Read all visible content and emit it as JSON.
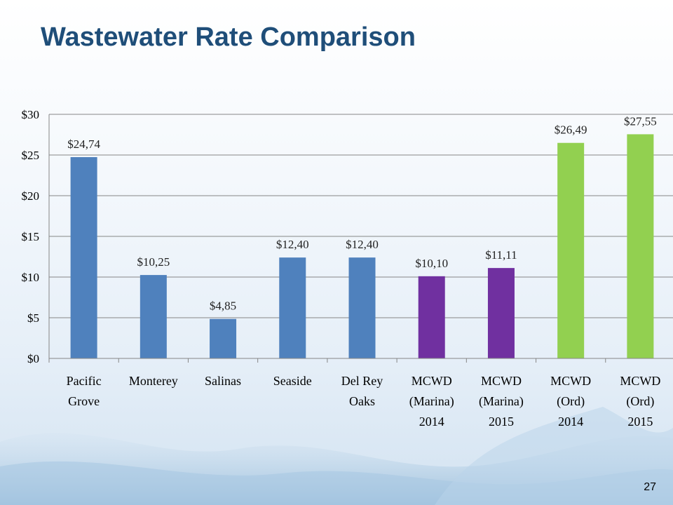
{
  "slide": {
    "title": "Wastewater Rate Comparison",
    "page_number": "27"
  },
  "colors": {
    "title": "#1f4e79",
    "blue": "#4f81bd",
    "purple": "#7030a0",
    "green": "#92d050",
    "grid": "#868686"
  },
  "chart_data": {
    "type": "bar",
    "title": "",
    "xlabel": "",
    "ylabel": "",
    "ylim": [
      0,
      30
    ],
    "y_ticks": [
      0,
      5,
      10,
      15,
      20,
      25,
      30
    ],
    "y_tick_labels": [
      "$0",
      "$5",
      "$10",
      "$15",
      "$20",
      "$25",
      "$30"
    ],
    "grid": true,
    "legend": "none",
    "categories": [
      [
        "Pacific",
        "Grove"
      ],
      [
        "Monterey"
      ],
      [
        "Salinas"
      ],
      [
        "Seaside"
      ],
      [
        "Del Rey",
        "Oaks"
      ],
      [
        "MCWD",
        "(Marina)",
        "2014"
      ],
      [
        "MCWD",
        "(Marina)",
        "2015"
      ],
      [
        "MCWD",
        "(Ord)",
        "2014"
      ],
      [
        "MCWD",
        "(Ord)",
        "2015"
      ]
    ],
    "values": [
      24.74,
      10.25,
      4.85,
      12.4,
      12.4,
      10.1,
      11.11,
      26.49,
      27.55
    ],
    "data_labels": [
      "$24,74",
      "$10,25",
      "$4,85",
      "$12,40",
      "$12,40",
      "$10,10",
      "$11,11",
      "$26,49",
      "$27,55"
    ],
    "bar_colors": [
      "#4f81bd",
      "#4f81bd",
      "#4f81bd",
      "#4f81bd",
      "#4f81bd",
      "#7030a0",
      "#7030a0",
      "#92d050",
      "#92d050"
    ]
  }
}
